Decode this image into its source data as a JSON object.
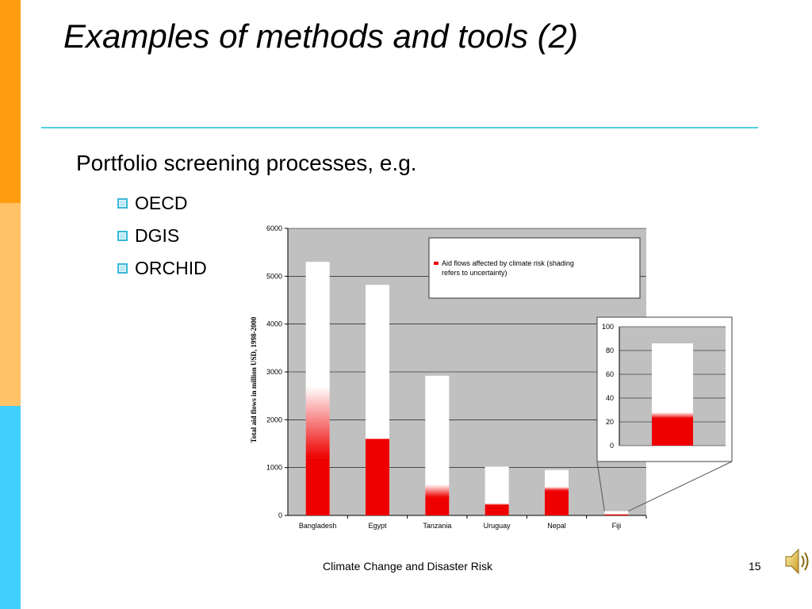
{
  "slide": {
    "title": "Examples of methods and tools (2)",
    "heading": "Portfolio screening processes, e.g.",
    "bullets": [
      "OECD",
      "DGIS",
      "ORCHID"
    ],
    "footer_center": "Climate Change and Disaster Risk",
    "page_number": "15",
    "icons": [
      "checkbox-bullet-icon",
      "speaker-icon"
    ],
    "colors": {
      "stripe_top": "#ff9d0f",
      "stripe_middle": "#ffc266",
      "stripe_bottom": "#3fd0ff",
      "rule": "#53cfe0"
    }
  },
  "chart_data": [
    {
      "type": "bar",
      "stacked": true,
      "categories": [
        "Bangladesh",
        "Egypt",
        "Tanzania",
        "Uruguay",
        "Nepal",
        "Fiji"
      ],
      "series": [
        {
          "name": "Aid flows affected by climate risk (shading refers to uncertainty)",
          "color": "#ee0000",
          "values": [
            1200,
            1600,
            380,
            220,
            520,
            20
          ]
        },
        {
          "name": "",
          "color": "#ffffff",
          "values": [
            4100,
            3220,
            2540,
            800,
            430,
            70
          ]
        }
      ],
      "uncertainty_upper": [
        2700,
        1600,
        650,
        250,
        600,
        25
      ],
      "ylabel": "Total aid flows in million USD, 1998-2000",
      "ylim": [
        0,
        6000
      ],
      "yticks": [
        0,
        1000,
        2000,
        3000,
        4000,
        5000,
        6000
      ],
      "legend_text": "Aid flows affected by climate risk (shading refers to uncertainty)",
      "legend_position": "top-right",
      "grid": true,
      "background": "#c0c0c0"
    },
    {
      "type": "bar",
      "stacked": true,
      "inset_of": "Fiji",
      "categories": [
        "Fiji"
      ],
      "series": [
        {
          "name": "",
          "color": "#ee0000",
          "values": [
            23
          ]
        },
        {
          "name": "",
          "color": "#ffffff",
          "values": [
            63
          ]
        }
      ],
      "uncertainty_upper": [
        28
      ],
      "ylim": [
        0,
        100
      ],
      "yticks": [
        0,
        20,
        40,
        60,
        80,
        100
      ],
      "grid": true,
      "background": "#c0c0c0"
    }
  ]
}
